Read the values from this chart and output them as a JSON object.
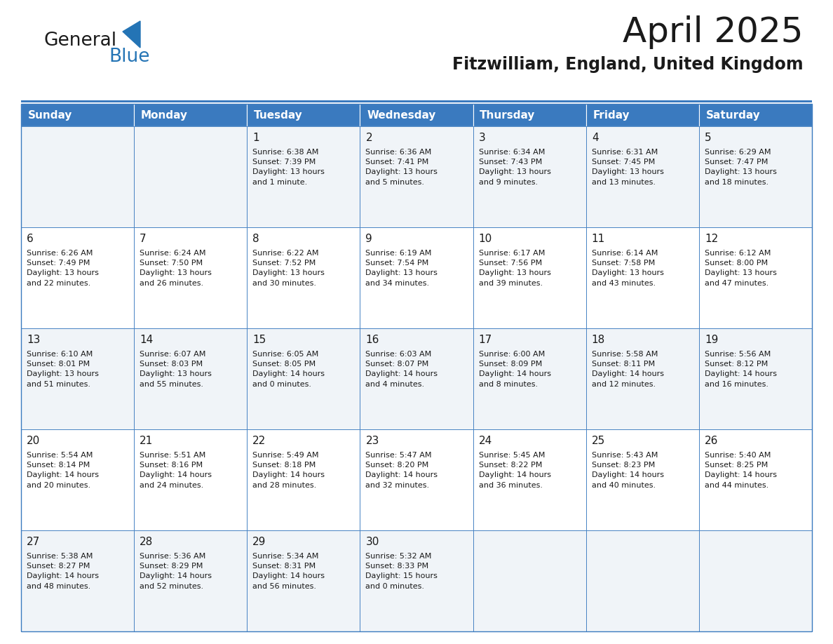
{
  "title": "April 2025",
  "subtitle": "Fitzwilliam, England, United Kingdom",
  "header_bg_color": "#3a7abf",
  "header_text_color": "#ffffff",
  "cell_bg_color_odd": "#f0f4f8",
  "cell_bg_color_even": "#ffffff",
  "border_color": "#3a7abf",
  "text_color": "#1a1a1a",
  "day_names": [
    "Sunday",
    "Monday",
    "Tuesday",
    "Wednesday",
    "Thursday",
    "Friday",
    "Saturday"
  ],
  "weeks": [
    [
      {
        "day": "",
        "info": ""
      },
      {
        "day": "",
        "info": ""
      },
      {
        "day": "1",
        "info": "Sunrise: 6:38 AM\nSunset: 7:39 PM\nDaylight: 13 hours\nand 1 minute."
      },
      {
        "day": "2",
        "info": "Sunrise: 6:36 AM\nSunset: 7:41 PM\nDaylight: 13 hours\nand 5 minutes."
      },
      {
        "day": "3",
        "info": "Sunrise: 6:34 AM\nSunset: 7:43 PM\nDaylight: 13 hours\nand 9 minutes."
      },
      {
        "day": "4",
        "info": "Sunrise: 6:31 AM\nSunset: 7:45 PM\nDaylight: 13 hours\nand 13 minutes."
      },
      {
        "day": "5",
        "info": "Sunrise: 6:29 AM\nSunset: 7:47 PM\nDaylight: 13 hours\nand 18 minutes."
      }
    ],
    [
      {
        "day": "6",
        "info": "Sunrise: 6:26 AM\nSunset: 7:49 PM\nDaylight: 13 hours\nand 22 minutes."
      },
      {
        "day": "7",
        "info": "Sunrise: 6:24 AM\nSunset: 7:50 PM\nDaylight: 13 hours\nand 26 minutes."
      },
      {
        "day": "8",
        "info": "Sunrise: 6:22 AM\nSunset: 7:52 PM\nDaylight: 13 hours\nand 30 minutes."
      },
      {
        "day": "9",
        "info": "Sunrise: 6:19 AM\nSunset: 7:54 PM\nDaylight: 13 hours\nand 34 minutes."
      },
      {
        "day": "10",
        "info": "Sunrise: 6:17 AM\nSunset: 7:56 PM\nDaylight: 13 hours\nand 39 minutes."
      },
      {
        "day": "11",
        "info": "Sunrise: 6:14 AM\nSunset: 7:58 PM\nDaylight: 13 hours\nand 43 minutes."
      },
      {
        "day": "12",
        "info": "Sunrise: 6:12 AM\nSunset: 8:00 PM\nDaylight: 13 hours\nand 47 minutes."
      }
    ],
    [
      {
        "day": "13",
        "info": "Sunrise: 6:10 AM\nSunset: 8:01 PM\nDaylight: 13 hours\nand 51 minutes."
      },
      {
        "day": "14",
        "info": "Sunrise: 6:07 AM\nSunset: 8:03 PM\nDaylight: 13 hours\nand 55 minutes."
      },
      {
        "day": "15",
        "info": "Sunrise: 6:05 AM\nSunset: 8:05 PM\nDaylight: 14 hours\nand 0 minutes."
      },
      {
        "day": "16",
        "info": "Sunrise: 6:03 AM\nSunset: 8:07 PM\nDaylight: 14 hours\nand 4 minutes."
      },
      {
        "day": "17",
        "info": "Sunrise: 6:00 AM\nSunset: 8:09 PM\nDaylight: 14 hours\nand 8 minutes."
      },
      {
        "day": "18",
        "info": "Sunrise: 5:58 AM\nSunset: 8:11 PM\nDaylight: 14 hours\nand 12 minutes."
      },
      {
        "day": "19",
        "info": "Sunrise: 5:56 AM\nSunset: 8:12 PM\nDaylight: 14 hours\nand 16 minutes."
      }
    ],
    [
      {
        "day": "20",
        "info": "Sunrise: 5:54 AM\nSunset: 8:14 PM\nDaylight: 14 hours\nand 20 minutes."
      },
      {
        "day": "21",
        "info": "Sunrise: 5:51 AM\nSunset: 8:16 PM\nDaylight: 14 hours\nand 24 minutes."
      },
      {
        "day": "22",
        "info": "Sunrise: 5:49 AM\nSunset: 8:18 PM\nDaylight: 14 hours\nand 28 minutes."
      },
      {
        "day": "23",
        "info": "Sunrise: 5:47 AM\nSunset: 8:20 PM\nDaylight: 14 hours\nand 32 minutes."
      },
      {
        "day": "24",
        "info": "Sunrise: 5:45 AM\nSunset: 8:22 PM\nDaylight: 14 hours\nand 36 minutes."
      },
      {
        "day": "25",
        "info": "Sunrise: 5:43 AM\nSunset: 8:23 PM\nDaylight: 14 hours\nand 40 minutes."
      },
      {
        "day": "26",
        "info": "Sunrise: 5:40 AM\nSunset: 8:25 PM\nDaylight: 14 hours\nand 44 minutes."
      }
    ],
    [
      {
        "day": "27",
        "info": "Sunrise: 5:38 AM\nSunset: 8:27 PM\nDaylight: 14 hours\nand 48 minutes."
      },
      {
        "day": "28",
        "info": "Sunrise: 5:36 AM\nSunset: 8:29 PM\nDaylight: 14 hours\nand 52 minutes."
      },
      {
        "day": "29",
        "info": "Sunrise: 5:34 AM\nSunset: 8:31 PM\nDaylight: 14 hours\nand 56 minutes."
      },
      {
        "day": "30",
        "info": "Sunrise: 5:32 AM\nSunset: 8:33 PM\nDaylight: 15 hours\nand 0 minutes."
      },
      {
        "day": "",
        "info": ""
      },
      {
        "day": "",
        "info": ""
      },
      {
        "day": "",
        "info": ""
      }
    ]
  ],
  "logo_color_general": "#1a1a1a",
  "logo_color_blue": "#2474b5",
  "logo_triangle_color": "#2474b5",
  "title_fontsize": 36,
  "subtitle_fontsize": 17,
  "header_fontsize": 11,
  "day_num_fontsize": 11,
  "info_fontsize": 8
}
